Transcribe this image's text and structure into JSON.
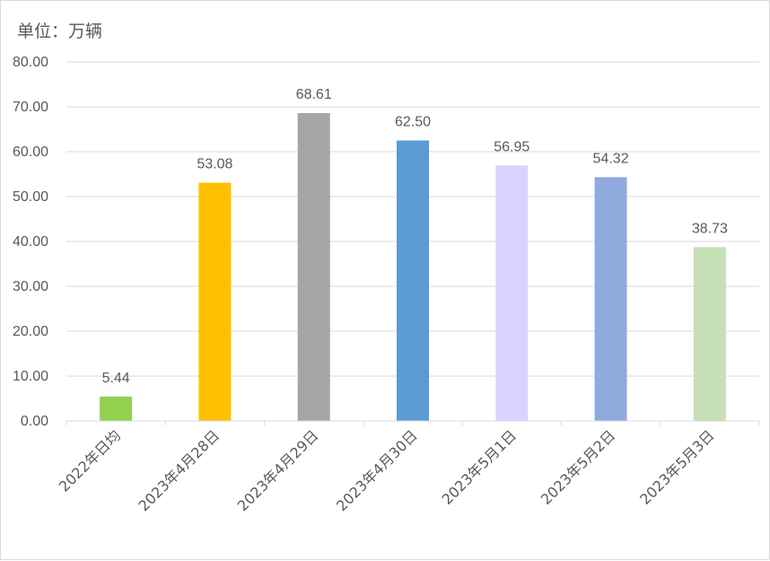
{
  "chart_data": {
    "type": "bar",
    "unit_label": "单位：万辆",
    "categories": [
      "2022年日均",
      "2023年4月28日",
      "2023年4月29日",
      "2023年4月30日",
      "2023年5月1日",
      "2023年5月2日",
      "2023年5月3日"
    ],
    "values": [
      5.44,
      53.08,
      68.61,
      62.5,
      56.95,
      54.32,
      38.73
    ],
    "value_labels": [
      "5.44",
      "53.08",
      "68.61",
      "62.50",
      "56.95",
      "54.32",
      "38.73"
    ],
    "bar_colors": [
      "#92d050",
      "#ffc000",
      "#a5a5a5",
      "#5b9bd5",
      "#d9d4ff",
      "#8faadc",
      "#c5e0b4"
    ],
    "ylim": [
      0,
      80
    ],
    "y_ticks": [
      "0.00",
      "10.00",
      "20.00",
      "30.00",
      "40.00",
      "50.00",
      "60.00",
      "70.00",
      "80.00"
    ],
    "grid": true,
    "legend": "none"
  }
}
